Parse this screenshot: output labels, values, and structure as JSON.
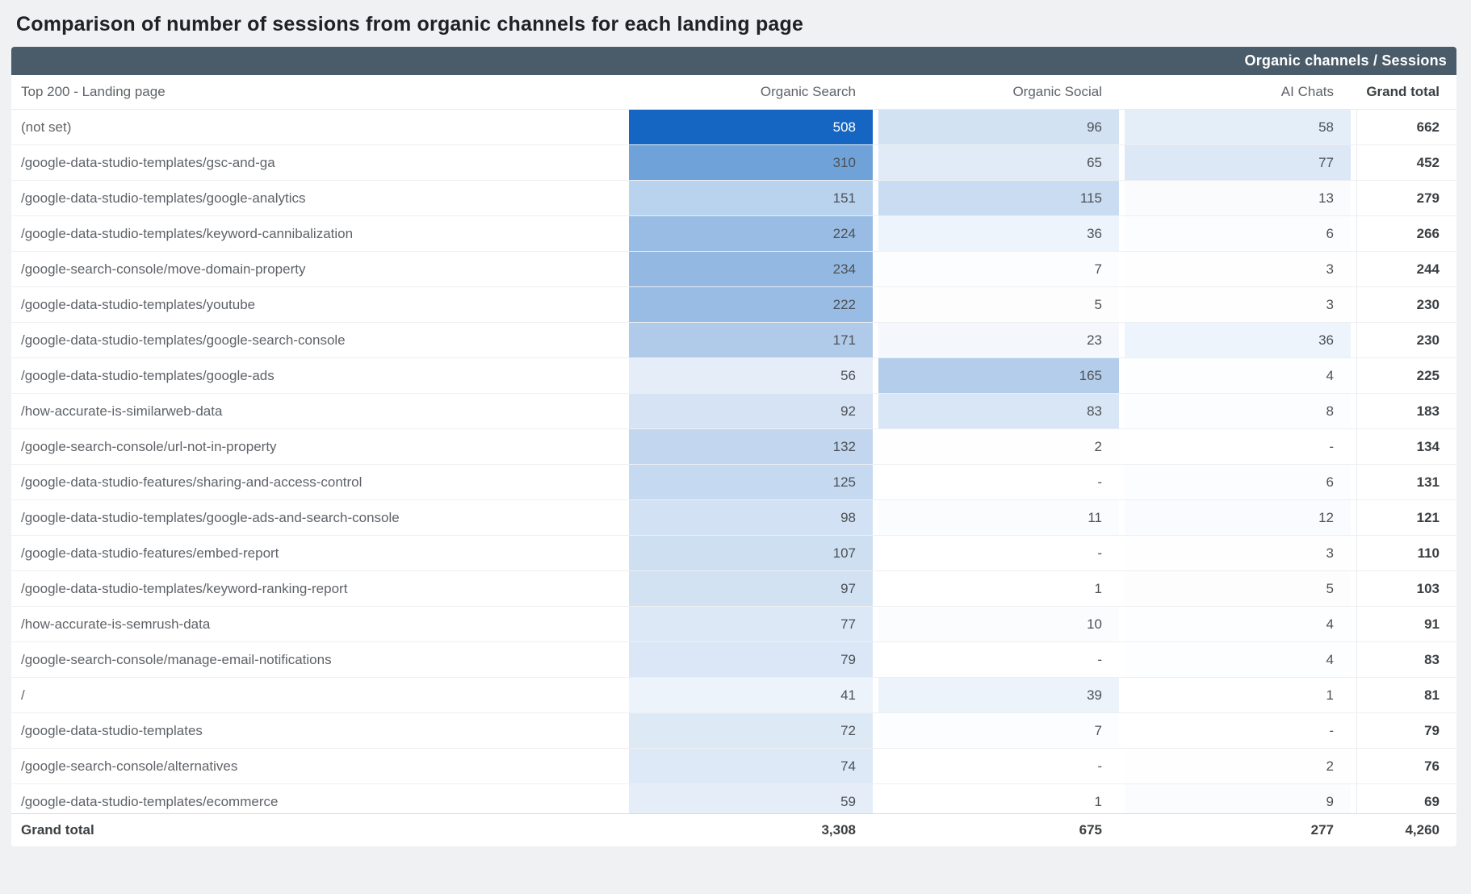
{
  "title": "Comparison of number of sessions from organic channels for each landing page",
  "table_header_band": "Organic channels / Sessions",
  "colors": {
    "header_band_bg": "#4a5b69",
    "heat_min": "#ffffff",
    "heat_max": "#1566c2",
    "max_cell_text": "#ffffff",
    "body_text": "#5f6368",
    "page_bg": "#f0f1f2"
  },
  "chart_data": {
    "type": "table",
    "style": "heatmap",
    "title": "Comparison of number of sessions from organic channels for each landing page",
    "band_label": "Organic channels / Sessions",
    "columns": [
      "Top 200 - Landing page",
      "Organic Search",
      "Organic Social",
      "AI Chats",
      "Grand total"
    ],
    "heat_scale": {
      "max_value": 508,
      "min_color": "#ffffff",
      "max_color": "#1566c2",
      "applies_to_columns": [
        "Organic Search",
        "Organic Social",
        "AI Chats"
      ]
    },
    "empty_marker": "-",
    "rows": [
      {
        "page": "(not set)",
        "values": [
          508,
          96,
          58
        ],
        "total": 662
      },
      {
        "page": "/google-data-studio-templates/gsc-and-ga",
        "values": [
          310,
          65,
          77
        ],
        "total": 452
      },
      {
        "page": "/google-data-studio-templates/google-analytics",
        "values": [
          151,
          115,
          13
        ],
        "total": 279
      },
      {
        "page": "/google-data-studio-templates/keyword-cannibalization",
        "values": [
          224,
          36,
          6
        ],
        "total": 266
      },
      {
        "page": "/google-search-console/move-domain-property",
        "values": [
          234,
          7,
          3
        ],
        "total": 244
      },
      {
        "page": "/google-data-studio-templates/youtube",
        "values": [
          222,
          5,
          3
        ],
        "total": 230
      },
      {
        "page": "/google-data-studio-templates/google-search-console",
        "values": [
          171,
          23,
          36
        ],
        "total": 230
      },
      {
        "page": "/google-data-studio-templates/google-ads",
        "values": [
          56,
          165,
          4
        ],
        "total": 225
      },
      {
        "page": "/how-accurate-is-similarweb-data",
        "values": [
          92,
          83,
          8
        ],
        "total": 183
      },
      {
        "page": "/google-search-console/url-not-in-property",
        "values": [
          132,
          2,
          "-"
        ],
        "total": 134
      },
      {
        "page": "/google-data-studio-features/sharing-and-access-control",
        "values": [
          125,
          "-",
          6
        ],
        "total": 131
      },
      {
        "page": "/google-data-studio-templates/google-ads-and-search-console",
        "values": [
          98,
          11,
          12
        ],
        "total": 121
      },
      {
        "page": "/google-data-studio-features/embed-report",
        "values": [
          107,
          "-",
          3
        ],
        "total": 110
      },
      {
        "page": "/google-data-studio-templates/keyword-ranking-report",
        "values": [
          97,
          1,
          5
        ],
        "total": 103
      },
      {
        "page": "/how-accurate-is-semrush-data",
        "values": [
          77,
          10,
          4
        ],
        "total": 91
      },
      {
        "page": "/google-search-console/manage-email-notifications",
        "values": [
          79,
          "-",
          4
        ],
        "total": 83
      },
      {
        "page": "/",
        "values": [
          41,
          39,
          1
        ],
        "total": 81
      },
      {
        "page": "/google-data-studio-templates",
        "values": [
          72,
          7,
          "-"
        ],
        "total": 79
      },
      {
        "page": "/google-search-console/alternatives",
        "values": [
          74,
          "-",
          2
        ],
        "total": 76
      },
      {
        "page": "/google-data-studio-templates/ecommerce",
        "values": [
          59,
          1,
          9
        ],
        "total": 69
      }
    ],
    "grand_total": {
      "label": "Grand total",
      "values": [
        "3,308",
        "675",
        "277"
      ],
      "total": "4,260"
    }
  }
}
